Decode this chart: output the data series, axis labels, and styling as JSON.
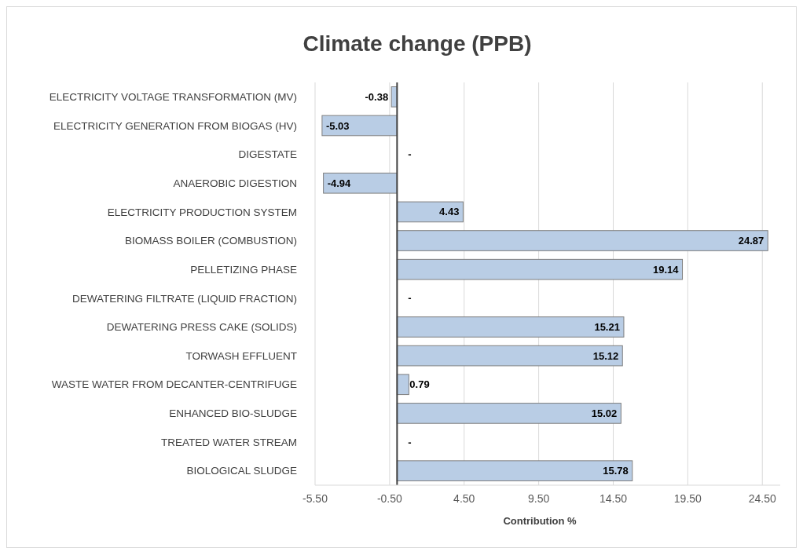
{
  "chart_data": {
    "type": "bar",
    "orientation": "horizontal",
    "title": "Climate change (PPB)",
    "xlabel": "Contribution %",
    "categories": [
      "ELECTRICITY VOLTAGE TRANSFORMATION (MV)",
      "ELECTRICITY GENERATION FROM BIOGAS (HV)",
      "DIGESTATE",
      "ANAEROBIC DIGESTION",
      "ELECTRICITY PRODUCTION SYSTEM",
      "BIOMASS BOILER (COMBUSTION)",
      "PELLETIZING PHASE",
      "DEWATERING FILTRATE (LIQUID FRACTION)",
      "DEWATERING PRESS CAKE (SOLIDS)",
      "TORWASH EFFLUENT",
      "WASTE WATER FROM DECANTER-CENTRIFUGE",
      "ENHANCED BIO-SLUDGE",
      "TREATED WATER STREAM",
      "BIOLOGICAL SLUDGE"
    ],
    "values": [
      -0.38,
      -5.03,
      0,
      -4.94,
      4.43,
      24.87,
      19.14,
      0,
      15.21,
      15.12,
      0.79,
      15.02,
      0,
      15.78
    ],
    "value_labels": [
      "-0.38",
      "-5.03",
      "-",
      "-4.94",
      "4.43",
      "24.87",
      "19.14",
      "-",
      "15.21",
      "15.12",
      "0.79",
      "15.02",
      "-",
      "15.78"
    ],
    "color": "#b9cde5",
    "xlim": [
      -5.5,
      25.7
    ],
    "xticks": [
      {
        "value": -5.5,
        "label": "-5.50"
      },
      {
        "value": -0.5,
        "label": "-0.50"
      },
      {
        "value": 4.5,
        "label": "4.50"
      },
      {
        "value": 9.5,
        "label": "9.50"
      },
      {
        "value": 14.5,
        "label": "14.50"
      },
      {
        "value": 19.5,
        "label": "19.50"
      },
      {
        "value": 24.5,
        "label": "24.50"
      }
    ],
    "grid": "x"
  }
}
